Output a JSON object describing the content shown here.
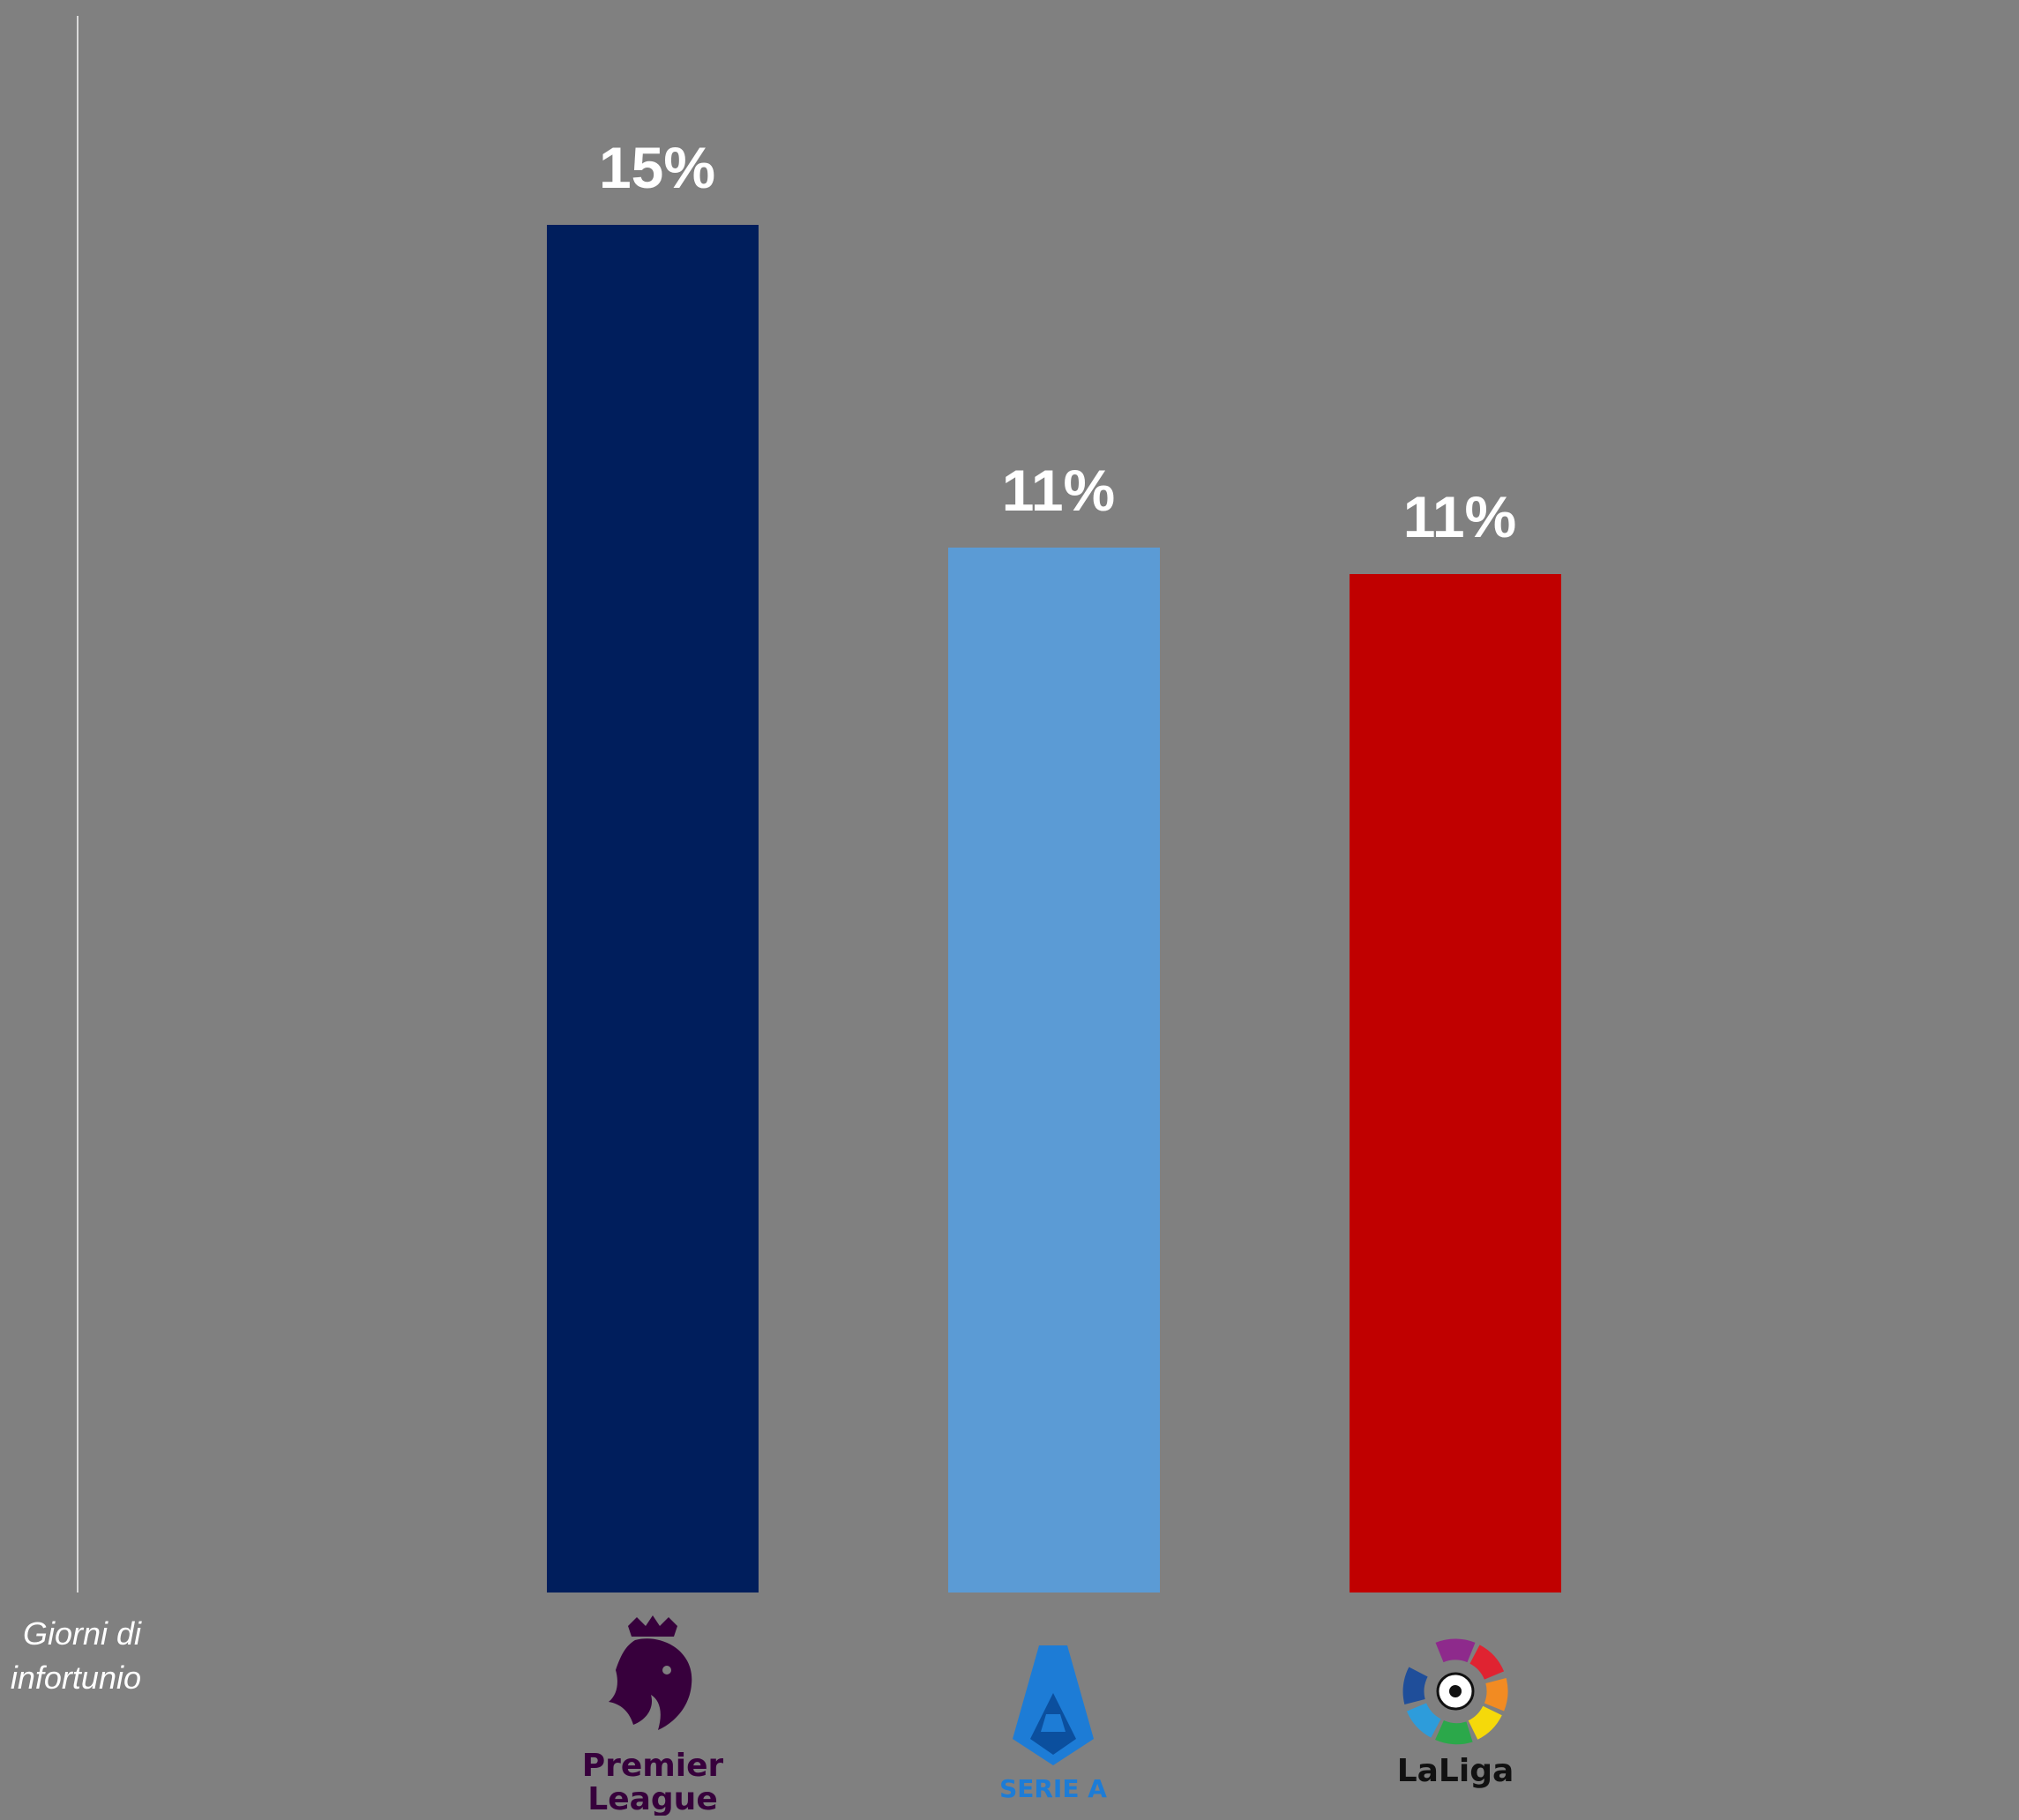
{
  "chart_data": {
    "type": "bar",
    "categories": [
      "Premier League",
      "Serie A",
      "LaLiga"
    ],
    "values": [
      15,
      11,
      11
    ],
    "data_labels": [
      "15%",
      "11%",
      "11%"
    ],
    "colors": [
      "#001E5C",
      "#5B9BD5",
      "#C00000"
    ],
    "background": "#808080",
    "axis_label_lines": [
      "Giorni di",
      "infortunio"
    ],
    "ylim": [
      0,
      16
    ],
    "grid": false,
    "legend": "none"
  },
  "logos": {
    "premier_league": {
      "icon": "premier-league-lion-icon",
      "line1": "Premier",
      "line2": "League",
      "color": "#37003C"
    },
    "serie_a": {
      "icon": "serie-a-shield-icon",
      "text": "SERIE A",
      "color": "#1D7CD6"
    },
    "laliga": {
      "icon": "laliga-ball-icon",
      "text": "LaLiga",
      "color": "#111111"
    }
  }
}
